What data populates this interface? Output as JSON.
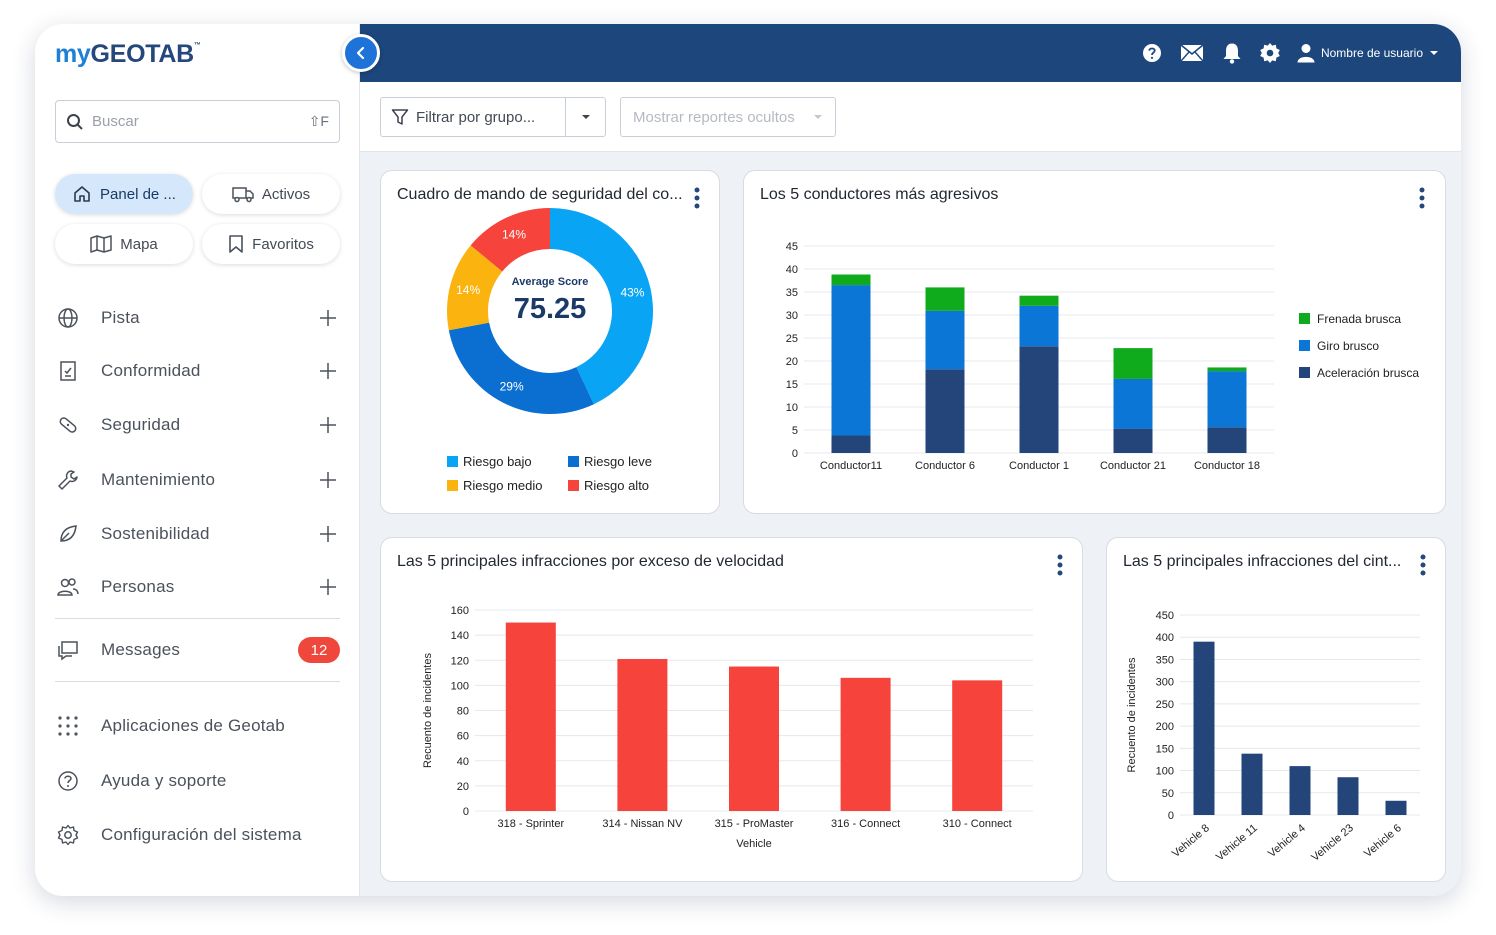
{
  "app": {
    "logo_my": "my",
    "logo_geotab": "GEOTAB",
    "logo_tm": "™"
  },
  "search": {
    "placeholder": "Buscar",
    "shortcut": "⇧F"
  },
  "quick": {
    "dashboard": "Panel de ...",
    "assets": "Activos",
    "map": "Mapa",
    "favorites": "Favoritos"
  },
  "nav": {
    "track": "Pista",
    "compliance": "Conformidad",
    "safety": "Seguridad",
    "maintenance": "Mantenimiento",
    "sustainability": "Sostenibilidad",
    "people": "Personas",
    "messages": "Messages",
    "messages_count": "12",
    "apps": "Aplicaciones de Geotab",
    "help": "Ayuda y soporte",
    "settings": "Configuración del sistema"
  },
  "topbar": {
    "user": "Nombre de usuario"
  },
  "filters": {
    "group": "Filtrar por grupo...",
    "hidden": "Mostrar reportes ocultos"
  },
  "colors": {
    "navy": "#1c467c",
    "accent": "#1e73d8",
    "badge": "#f0473d"
  },
  "cards": {
    "safety": "Cuadro de mando de seguridad del co...",
    "aggressive": "Los 5 conductores más agresivos",
    "speeding": "Las 5 principales infracciones por exceso de velocidad",
    "seatbelt": "Las 5 principales infracciones del cint..."
  },
  "chart_data": [
    {
      "id": "safety",
      "type": "pie",
      "title": "Cuadro de mando de seguridad del co...",
      "center_label": "Average Score",
      "center_value": "75.25",
      "slices": [
        {
          "label": "Riesgo bajo",
          "value": 43,
          "text": "43%",
          "color": "#0aa4f4"
        },
        {
          "label": "Riesgo leve",
          "value": 29,
          "text": "29%",
          "color": "#0a6fd0"
        },
        {
          "label": "Riesgo medio",
          "value": 14,
          "text": "14%",
          "color": "#fbb40f"
        },
        {
          "label": "Riesgo alto",
          "value": 14,
          "text": "14%",
          "color": "#f6433c"
        }
      ]
    },
    {
      "id": "aggressive",
      "type": "bar",
      "stacked": true,
      "title": "Los 5 conductores más agresivos",
      "categories": [
        "Conductor11",
        "Conductor 6",
        "Conductor 1",
        "Conductor 21",
        "Conductor 18"
      ],
      "ylim": [
        0,
        45
      ],
      "yticks": [
        0,
        5,
        10,
        15,
        20,
        25,
        30,
        35,
        40,
        45
      ],
      "series": [
        {
          "name": "Aceleración brusca",
          "color": "#24457a",
          "values": [
            3.8,
            18.2,
            23.2,
            5.3,
            5.6
          ]
        },
        {
          "name": "Giro brusco",
          "color": "#0b76d6",
          "values": [
            32.7,
            12.7,
            8.8,
            10.8,
            12.2
          ]
        },
        {
          "name": "Frenada brusca",
          "color": "#0fab1c",
          "values": [
            2.3,
            5.1,
            2.2,
            6.7,
            0.8
          ]
        }
      ],
      "legend": [
        "Frenada brusca",
        "Giro brusco",
        "Aceleración brusca"
      ]
    },
    {
      "id": "speeding",
      "type": "bar",
      "title": "Las 5 principales infracciones por exceso de velocidad",
      "categories": [
        "318 - Sprinter",
        "314 - Nissan NV",
        "315 - ProMaster",
        "316 - Connect",
        "310 - Connect"
      ],
      "values": [
        150,
        121,
        115,
        106,
        104
      ],
      "ylim": [
        0,
        160
      ],
      "yticks": [
        0,
        20,
        40,
        60,
        80,
        100,
        120,
        140,
        160
      ],
      "xlabel": "Vehicle",
      "ylabel": "Recuento de incidentes",
      "color": "#f6433c"
    },
    {
      "id": "seatbelt",
      "type": "bar",
      "title": "Las 5 principales infracciones del cint...",
      "categories": [
        "Vehicle 8",
        "Vehicle 11",
        "Vehicle 4",
        "Vehicle 23",
        "Vehicle 6"
      ],
      "values": [
        390,
        138,
        110,
        85,
        32
      ],
      "ylim": [
        0,
        450
      ],
      "yticks": [
        0,
        50,
        100,
        150,
        200,
        250,
        300,
        350,
        400,
        450
      ],
      "ylabel": "Recuento de incidentes",
      "color": "#24457a"
    }
  ]
}
